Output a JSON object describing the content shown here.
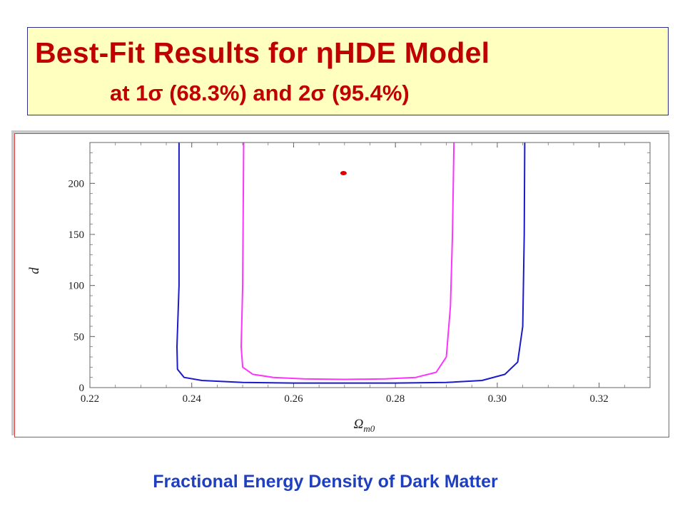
{
  "title": {
    "line1": "Best-Fit Results for ηHDE Model",
    "line2": "at 1σ (68.3%) and 2σ (95.4%)"
  },
  "caption": "Fractional Energy Density of  Dark Matter",
  "colors": {
    "title_text": "#c00000",
    "title_bg": "#ffffc0",
    "caption_text": "#1f3fbf",
    "contour_1sigma": "#ff33ff",
    "contour_2sigma": "#1a1acc",
    "best_fit": "#dd0000"
  },
  "chart_data": {
    "type": "scatter",
    "xlabel": "Ωm0",
    "ylabel": "d",
    "xlim": [
      0.22,
      0.33
    ],
    "ylim": [
      0,
      240
    ],
    "xticks": [
      "0.22",
      "0.24",
      "0.26",
      "0.28",
      "0.30",
      "0.32"
    ],
    "yticks": [
      "0",
      "50",
      "100",
      "150",
      "200"
    ],
    "grid": false,
    "series": [
      {
        "color": "#1a1acc",
        "x": [
          0.2375,
          0.2375,
          0.2371,
          0.2372,
          0.2385,
          0.242,
          0.25,
          0.26,
          0.27,
          0.28,
          0.29,
          0.297,
          0.3015,
          0.304,
          0.305,
          0.3053,
          0.3054
        ],
        "y": [
          240,
          100,
          40,
          18,
          10,
          7,
          5,
          4.5,
          4.5,
          4.5,
          5,
          7,
          13,
          25,
          60,
          150,
          240
        ]
      },
      {
        "color": "#ff33ff",
        "x": [
          0.2502,
          0.25,
          0.2497,
          0.25,
          0.252,
          0.256,
          0.262,
          0.27,
          0.278,
          0.284,
          0.288,
          0.29,
          0.2908,
          0.2912,
          0.2915
        ],
        "y": [
          240,
          100,
          40,
          20,
          13,
          10,
          8.5,
          8,
          8.5,
          10,
          15,
          30,
          80,
          150,
          240
        ]
      },
      {
        "color": "#dd0000",
        "x": [
          0.2698
        ],
        "y": [
          210
        ]
      }
    ]
  }
}
